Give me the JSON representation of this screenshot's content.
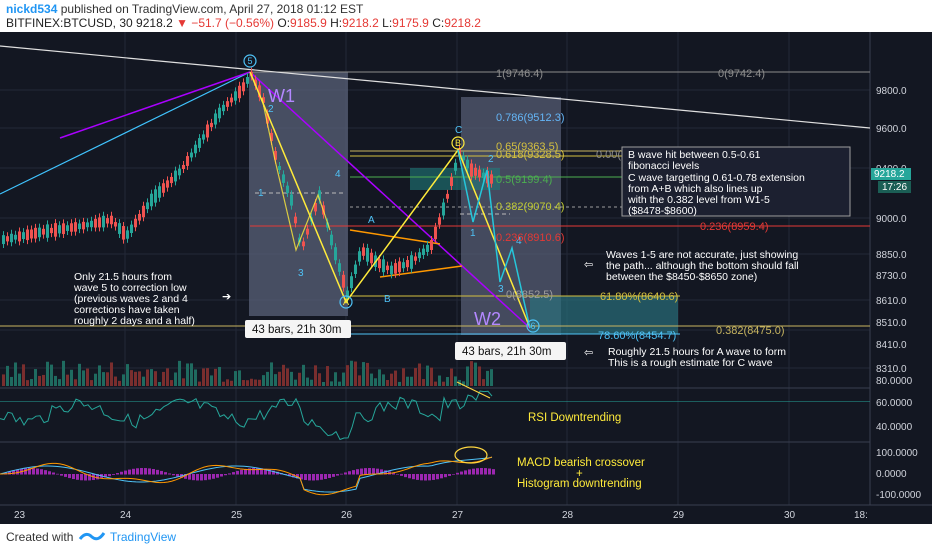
{
  "header": {
    "user": "nickd534",
    "published": "published on TradingView.com, April 27, 2018 01:12 EST",
    "symbol": "BITFINEX:BTCUSD, 30",
    "last": "9218.2",
    "change": "▼ −51.7 (−0.56%)",
    "o_label": "O:",
    "o": "9185.9",
    "h_label": "H:",
    "h": "9218.2",
    "l_label": "L:",
    "l": "9175.9",
    "c_label": "C:",
    "c": "9218.2"
  },
  "price_axis": [
    "9800.0",
    "9600.0",
    "9400.0",
    "9000.0",
    "8850.0",
    "8730.0",
    "8610.0",
    "8510.0",
    "8410.0",
    "8310.0"
  ],
  "price_badge": {
    "price": "9218.2",
    "time": "17:26"
  },
  "rsi_axis": [
    "80.0000",
    "60.0000",
    "40.0000"
  ],
  "macd_axis": [
    "100.0000",
    "0.0000",
    "-100.0000"
  ],
  "time_axis": [
    "23",
    "24",
    "25",
    "26",
    "27",
    "28",
    "29",
    "30",
    "18:"
  ],
  "fib_labels": {
    "one": "1(9746.4)",
    "zero_top": "0(9742.4)",
    "f786": "0.786(9512.3)",
    "f65": "0.65(9363.5)",
    "f618": "0.618(9328.5)",
    "f00": "0.00(",
    "f05": "0.5(9199.4)",
    "f382": "0.382(9070.4)",
    "f236": "0.236(8959.4)",
    "f236b": "0.236(8910.6)",
    "f0b": "0(8852.5)",
    "f618b": "61.80%(8640.6)",
    "f786b": "78.60%(8454.7)",
    "f382b": "0.382(8475.0)"
  },
  "waves": {
    "w1": "W1",
    "w2": "W2",
    "n5": "5",
    "n2": "2",
    "n1": "1",
    "n3": "3",
    "n4": "4",
    "nA": "A",
    "nB": "B",
    "nC": "C",
    "circ5": "5",
    "circA": "A",
    "circB": "B",
    "circ6": "6",
    "r1": "1",
    "r2": "2",
    "r3": "3",
    "r4": "4",
    "r5": "5"
  },
  "bars_label_1": "43 bars, 21h 30m",
  "bars_label_2": "43 bars, 21h 30m",
  "notes": {
    "left": [
      "Only 21.5 hours from",
      "wave 5 to correction low",
      "(previous waves 2 and 4",
      "corrections have taken",
      "roughly 2 days and a half)"
    ],
    "box": [
      "B wave hit between 0.5-0.61",
      "fibonacci levels",
      "",
      "C wave targetting 0.61-0.78 extension",
      "from A+B which also lines up",
      "with the 0.382 level from W1-5",
      "($8478-$8600)"
    ],
    "waves_note": [
      "Waves 1-5 are not accurate, just showing",
      "the path... although the bottom should fall",
      "between the $8450-$8650 zone)"
    ],
    "a_wave": [
      "Roughly 21.5 hours for A wave to form",
      "This is a rough estimate for C wave"
    ],
    "rsi": "RSI Downtrending",
    "macd": [
      "MACD bearish crossover",
      "+",
      "Histogram downtrending"
    ]
  },
  "footer": {
    "created": "Created with",
    "brand": "TradingView"
  }
}
